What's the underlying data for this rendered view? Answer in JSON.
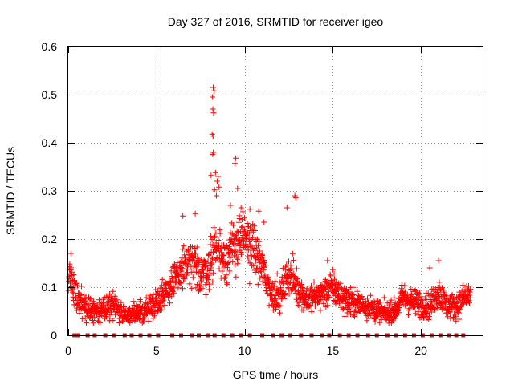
{
  "chart_data": {
    "type": "scatter",
    "title": "Day 327 of 2016, SRMTID for receiver igeo",
    "xlabel": "GPS time / hours",
    "ylabel": "SRMTID / TECUs",
    "xlim": [
      0,
      23.5
    ],
    "ylim": [
      0,
      0.6
    ],
    "xticks": [
      0,
      5,
      10,
      15,
      20
    ],
    "yticks": [
      0,
      0.1,
      0.2,
      0.3,
      0.4,
      0.5,
      0.6
    ],
    "grid": true,
    "marker": "+",
    "color": "#ff0000",
    "series": [
      {
        "name": "SRMTID",
        "profile_x": [
          0,
          0.1,
          0.3,
          0.6,
          1.0,
          1.5,
          2.0,
          2.5,
          3.0,
          3.5,
          4.0,
          4.5,
          5.0,
          5.5,
          6.0,
          6.5,
          7.0,
          7.5,
          8.0,
          8.3,
          8.6,
          9.0,
          9.5,
          10.0,
          10.5,
          11.0,
          11.5,
          12.0,
          12.5,
          13.0,
          13.5,
          14.0,
          14.5,
          15.0,
          15.5,
          16.0,
          16.5,
          17.0,
          17.5,
          18.0,
          18.5,
          19.0,
          19.5,
          20.0,
          20.5,
          21.0,
          21.5,
          22.0,
          22.5,
          22.8
        ],
        "profile_y": [
          0.08,
          0.13,
          0.1,
          0.07,
          0.06,
          0.05,
          0.055,
          0.06,
          0.05,
          0.045,
          0.045,
          0.055,
          0.07,
          0.09,
          0.11,
          0.14,
          0.15,
          0.13,
          0.14,
          0.19,
          0.17,
          0.16,
          0.19,
          0.2,
          0.18,
          0.14,
          0.09,
          0.08,
          0.13,
          0.1,
          0.075,
          0.08,
          0.09,
          0.1,
          0.08,
          0.07,
          0.065,
          0.06,
          0.05,
          0.045,
          0.05,
          0.08,
          0.07,
          0.065,
          0.06,
          0.09,
          0.06,
          0.06,
          0.08,
          0.085
        ],
        "outliers": [
          {
            "x": 8.22,
            "y": 0.515
          },
          {
            "x": 8.26,
            "y": 0.508
          },
          {
            "x": 8.18,
            "y": 0.495
          },
          {
            "x": 8.2,
            "y": 0.47
          },
          {
            "x": 8.24,
            "y": 0.462
          },
          {
            "x": 8.16,
            "y": 0.418
          },
          {
            "x": 8.21,
            "y": 0.414
          },
          {
            "x": 8.23,
            "y": 0.38
          },
          {
            "x": 8.19,
            "y": 0.376
          },
          {
            "x": 8.1,
            "y": 0.332
          },
          {
            "x": 8.35,
            "y": 0.338
          },
          {
            "x": 8.5,
            "y": 0.33
          },
          {
            "x": 8.45,
            "y": 0.32
          },
          {
            "x": 8.3,
            "y": 0.302
          },
          {
            "x": 8.55,
            "y": 0.308
          },
          {
            "x": 8.4,
            "y": 0.29
          },
          {
            "x": 9.5,
            "y": 0.368
          },
          {
            "x": 9.45,
            "y": 0.357
          },
          {
            "x": 9.6,
            "y": 0.305
          },
          {
            "x": 12.85,
            "y": 0.29
          },
          {
            "x": 12.9,
            "y": 0.286
          },
          {
            "x": 12.4,
            "y": 0.265
          },
          {
            "x": 6.5,
            "y": 0.248
          },
          {
            "x": 7.2,
            "y": 0.253
          },
          {
            "x": 10.3,
            "y": 0.262
          },
          {
            "x": 10.8,
            "y": 0.258
          },
          {
            "x": 9.2,
            "y": 0.27
          },
          {
            "x": 9.8,
            "y": 0.265
          },
          {
            "x": 11.1,
            "y": 0.235
          },
          {
            "x": 21.0,
            "y": 0.155
          },
          {
            "x": 20.5,
            "y": 0.14
          },
          {
            "x": 0.15,
            "y": 0.17
          },
          {
            "x": 14.7,
            "y": 0.155
          }
        ],
        "zero_marker_x": [
          0.35,
          0.55,
          1.1,
          1.5,
          2.1,
          2.6,
          3.2,
          3.6,
          4.1,
          4.6,
          5.1,
          5.9,
          6.4,
          7.0,
          7.4,
          7.9,
          8.3,
          8.8,
          9.3,
          9.8,
          10.3,
          11.0,
          11.6,
          12.1,
          12.6,
          13.2,
          13.8,
          14.4,
          14.8,
          15.4,
          15.9,
          16.4,
          17.0,
          17.5,
          18.1,
          18.6,
          19.1,
          19.6,
          20.1,
          20.6,
          21.1,
          21.6,
          22.0,
          22.4
        ]
      }
    ]
  }
}
